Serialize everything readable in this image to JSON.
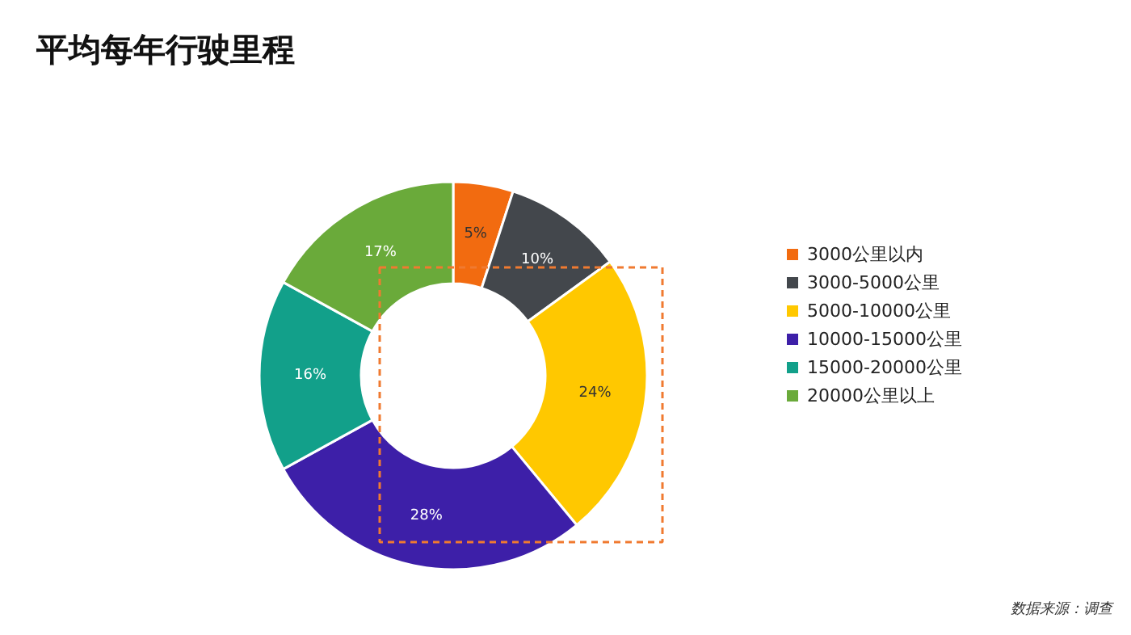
{
  "chart_data": {
    "type": "donut",
    "title": "平均每年行驶里程",
    "categories": [
      "3000公里以内",
      "3000-5000公里",
      "5000-10000公里",
      "10000-15000公里",
      "15000-20000公里",
      "20000公里以上"
    ],
    "values": [
      5,
      10,
      24,
      28,
      16,
      17
    ],
    "colors": [
      "#f26b10",
      "#43474c",
      "#ffc800",
      "#3d1fa8",
      "#12a08a",
      "#6aaa3a"
    ],
    "value_labels": [
      "5%",
      "10%",
      "24%",
      "28%",
      "16%",
      "17%"
    ],
    "legend": "right",
    "annotations": [
      "数据来源：调查"
    ]
  }
}
